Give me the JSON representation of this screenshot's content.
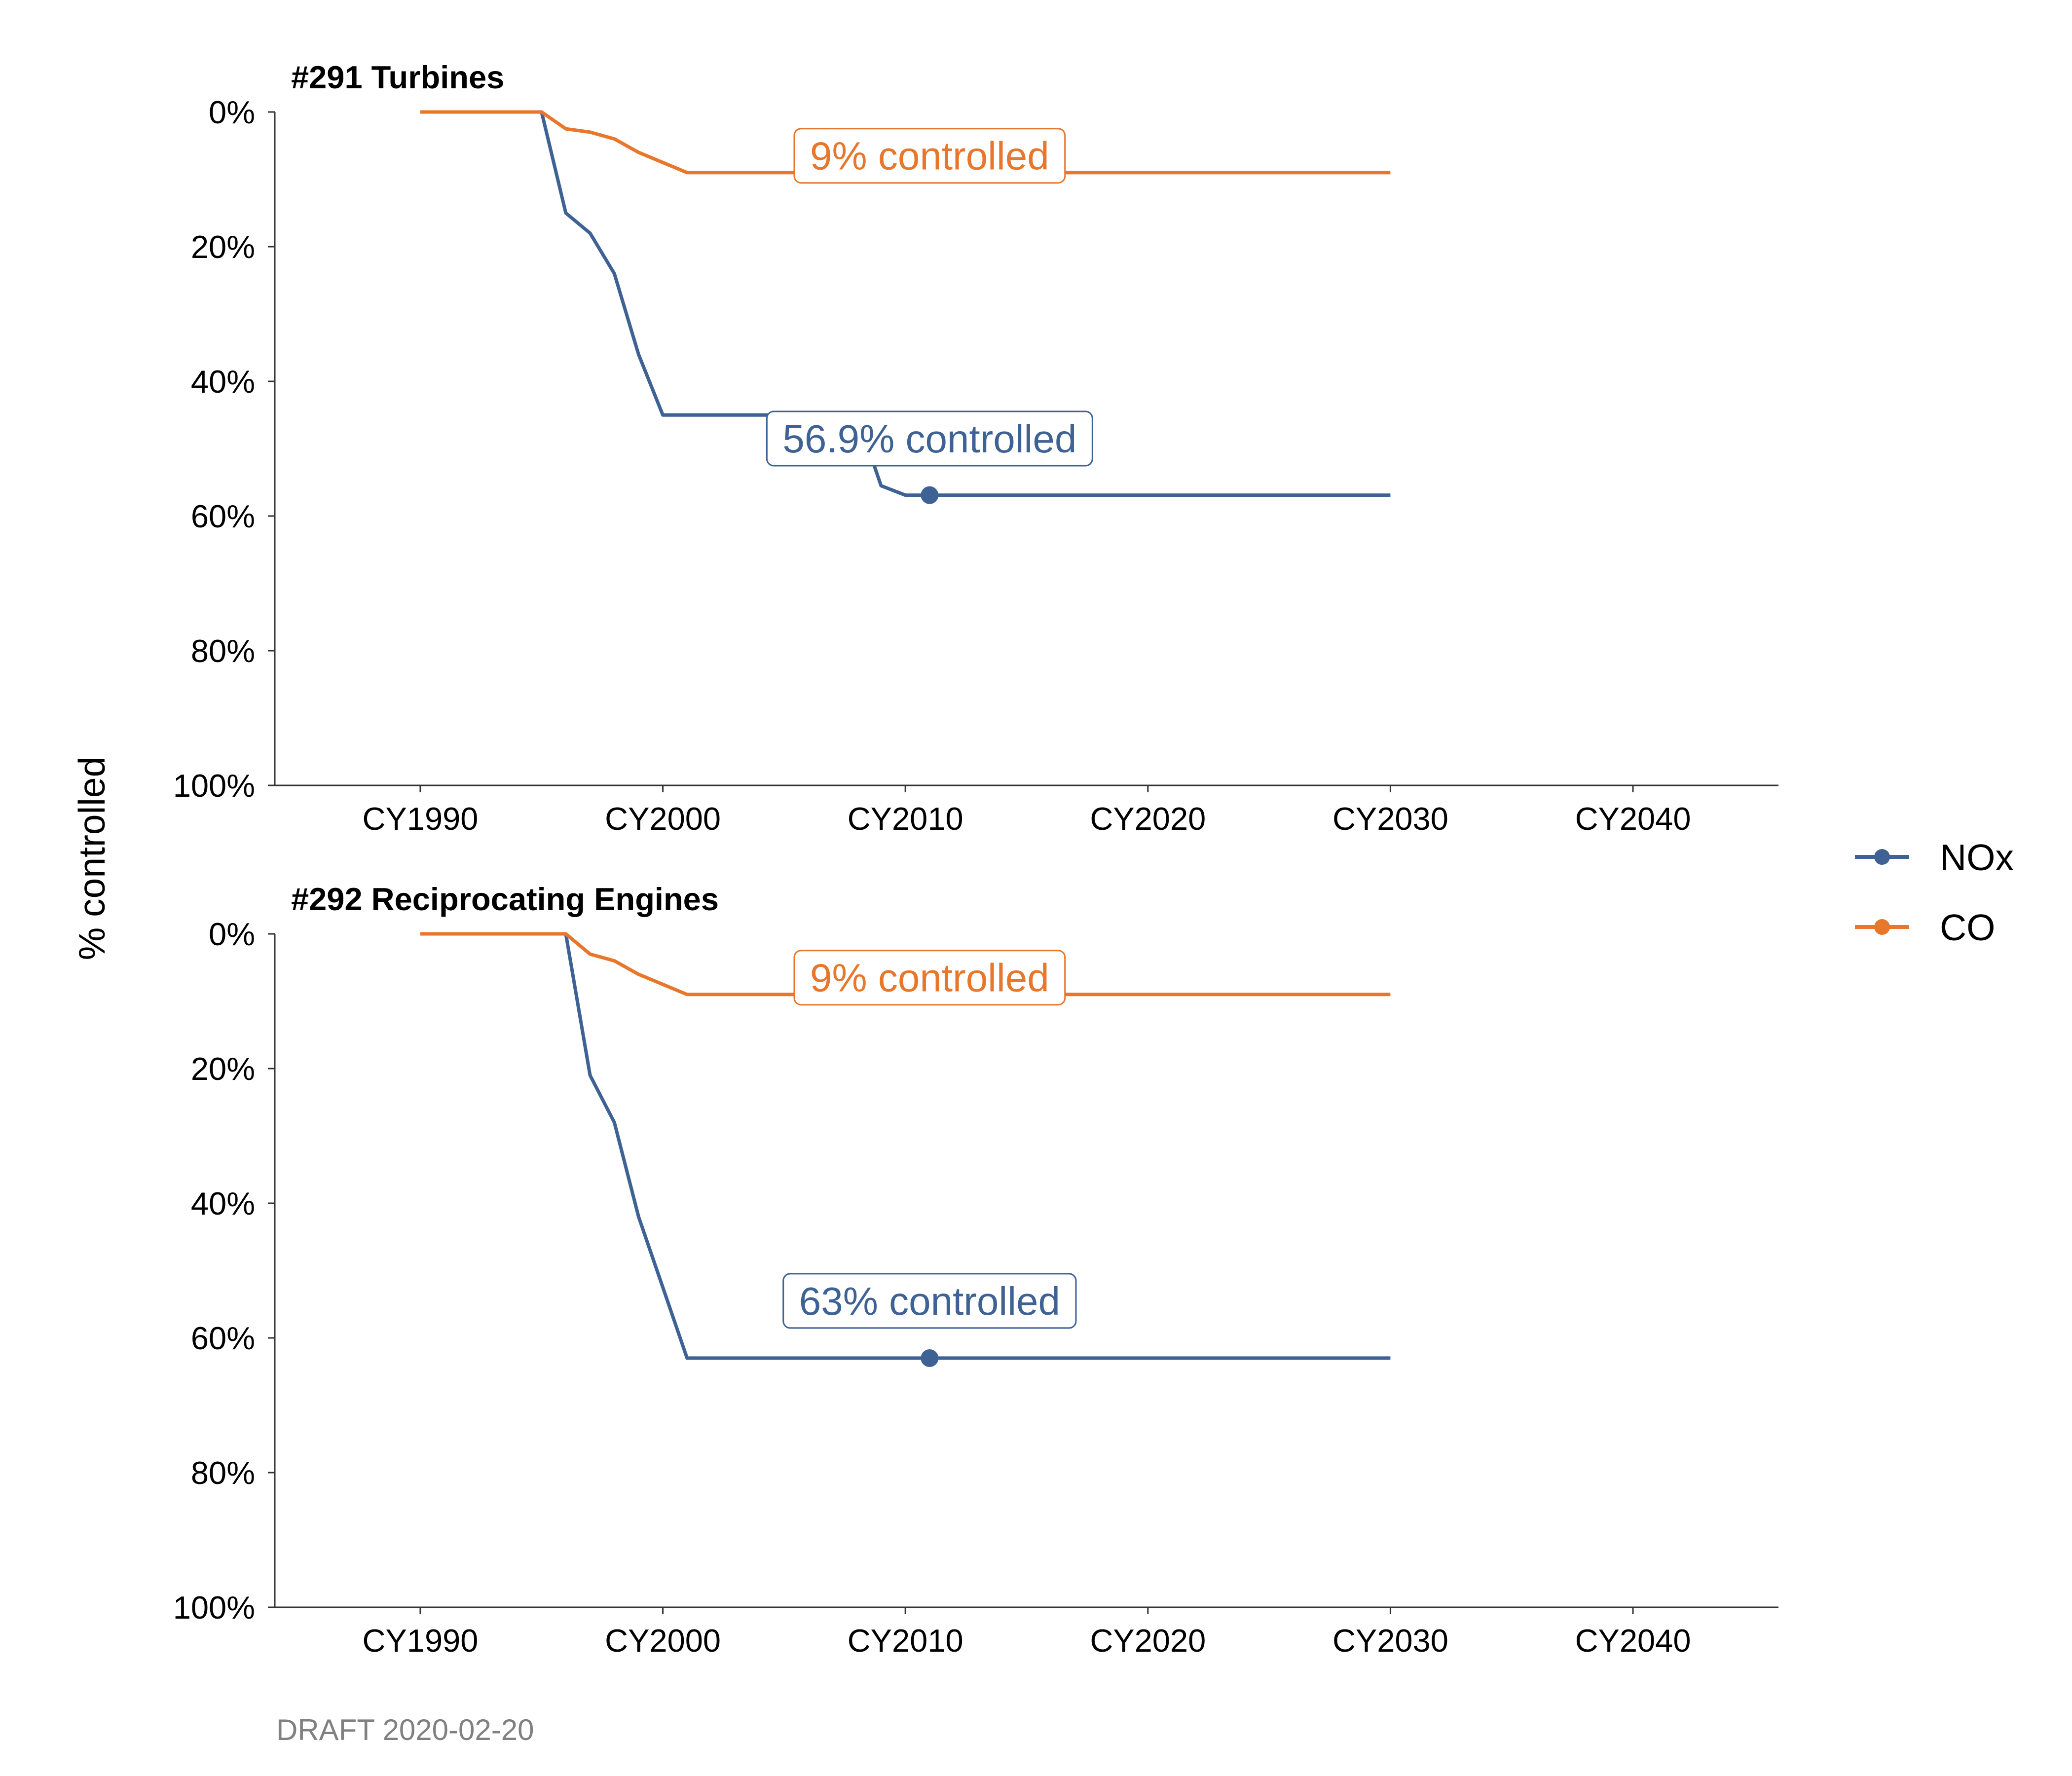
{
  "chart_data": [
    {
      "type": "line",
      "title": "#291 Turbines",
      "ylabel": "% controlled",
      "xlabel": "",
      "y_reversed": true,
      "ylim": [
        0,
        100
      ],
      "yticks": [
        0,
        20,
        40,
        60,
        80,
        100
      ],
      "ytick_labels": [
        "0%",
        "20%",
        "40%",
        "60%",
        "80%",
        "100%"
      ],
      "xlim": [
        1984,
        2046
      ],
      "xticks": [
        1990,
        2000,
        2010,
        2020,
        2030,
        2040
      ],
      "xtick_labels": [
        "CY1990",
        "CY2000",
        "CY2010",
        "CY2020",
        "CY2030",
        "CY2040"
      ],
      "series": [
        {
          "name": "NOx",
          "color": "#3f6295",
          "x": [
            1990,
            1995,
            1996,
            1997,
            1998,
            1999,
            2000,
            2001,
            2008,
            2009,
            2010,
            2011,
            2030
          ],
          "y": [
            0,
            0,
            15,
            18,
            24,
            36,
            45,
            45,
            45,
            55.5,
            56.9,
            56.9,
            56.9
          ],
          "highlight": {
            "x": 2011,
            "y": 56.9
          },
          "callout": {
            "text": "56.9% controlled",
            "x": 2011,
            "y": 48.5
          }
        },
        {
          "name": "CO",
          "color": "#e8762b",
          "x": [
            1990,
            1995,
            1996,
            1997,
            1998,
            1999,
            2000,
            2001,
            2030
          ],
          "y": [
            0,
            0,
            2.5,
            3,
            4,
            6,
            7.5,
            9,
            9
          ],
          "callout": {
            "text": "9% controlled",
            "x": 2011,
            "y": 6.5
          }
        }
      ]
    },
    {
      "type": "line",
      "title": "#292 Reciprocating Engines",
      "ylabel": "% controlled",
      "xlabel": "",
      "y_reversed": true,
      "ylim": [
        0,
        100
      ],
      "yticks": [
        0,
        20,
        40,
        60,
        80,
        100
      ],
      "ytick_labels": [
        "0%",
        "20%",
        "40%",
        "60%",
        "80%",
        "100%"
      ],
      "xlim": [
        1984,
        2046
      ],
      "xticks": [
        1990,
        2000,
        2010,
        2020,
        2030,
        2040
      ],
      "xtick_labels": [
        "CY1990",
        "CY2000",
        "CY2010",
        "CY2020",
        "CY2030",
        "CY2040"
      ],
      "series": [
        {
          "name": "NOx",
          "color": "#3f6295",
          "x": [
            1990,
            1996,
            1997,
            1998,
            1999,
            2000,
            2001,
            2030
          ],
          "y": [
            0,
            0,
            21,
            28,
            42,
            52.5,
            63,
            63
          ],
          "highlight": {
            "x": 2011,
            "y": 63
          },
          "callout": {
            "text": "63% controlled",
            "x": 2011,
            "y": 54.5
          }
        },
        {
          "name": "CO",
          "color": "#e8762b",
          "x": [
            1990,
            1996,
            1997,
            1998,
            1999,
            2000,
            2001,
            2030
          ],
          "y": [
            0,
            0,
            3,
            4,
            6,
            7.5,
            9,
            9
          ],
          "callout": {
            "text": "9% controlled",
            "x": 2011,
            "y": 6.5
          }
        }
      ]
    }
  ],
  "legend": {
    "placement": "right",
    "items": [
      {
        "label": "NOx",
        "color": "#3f6295"
      },
      {
        "label": "CO",
        "color": "#e8762b"
      }
    ]
  },
  "caption": "DRAFT 2020-02-20"
}
